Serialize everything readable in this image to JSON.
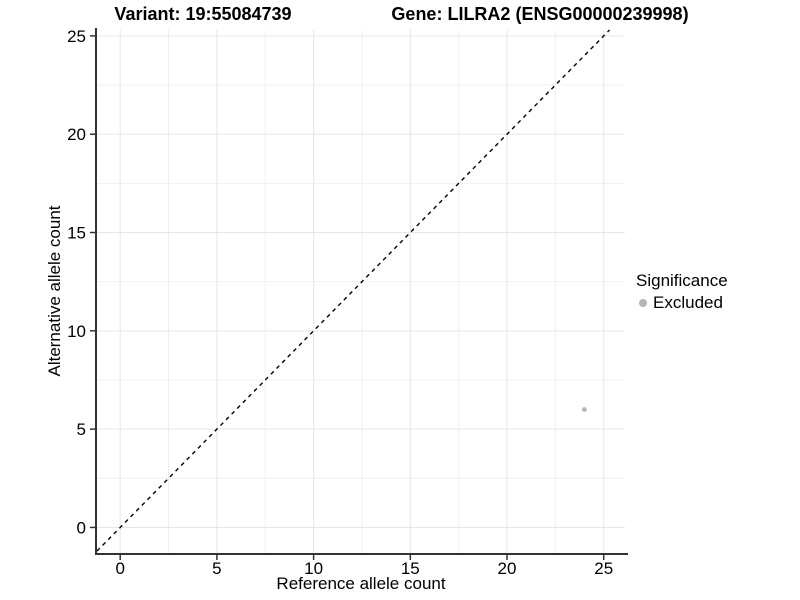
{
  "titles": {
    "left": "Variant: 19:55084739",
    "right": "Gene: LILRA2 (ENSG00000239998)"
  },
  "chart_data": {
    "type": "scatter",
    "title": "Variant: 19:55084739 | Gene: LILRA2 (ENSG00000239998)",
    "xlabel": "Reference allele count",
    "ylabel": "Alternative allele count",
    "xlim": [
      -1.2,
      26.1
    ],
    "ylim": [
      -1.3,
      25.3
    ],
    "xticks": [
      0,
      5,
      10,
      15,
      20,
      25
    ],
    "yticks": [
      0,
      5,
      10,
      15,
      20,
      25
    ],
    "minor_gridlines": [
      2.5,
      7.5,
      12.5,
      17.5,
      22.5
    ],
    "grid": true,
    "points": [
      {
        "x": 24,
        "y": 6,
        "series": "Excluded"
      }
    ],
    "reference_line": {
      "type": "identity y=x",
      "style": "dashed",
      "color": "#000000"
    },
    "legend": {
      "title": "Significance",
      "position": "right",
      "items": [
        {
          "label": "Excluded",
          "color": "#b4b4b4"
        }
      ]
    }
  },
  "colors": {
    "background": "#ffffff",
    "axis_line": "#333333",
    "tick": "#333333",
    "grid_major": "#e6e6e6",
    "grid_minor": "#f0f0f0",
    "point": "#b4b4b4",
    "text": "#000000"
  }
}
